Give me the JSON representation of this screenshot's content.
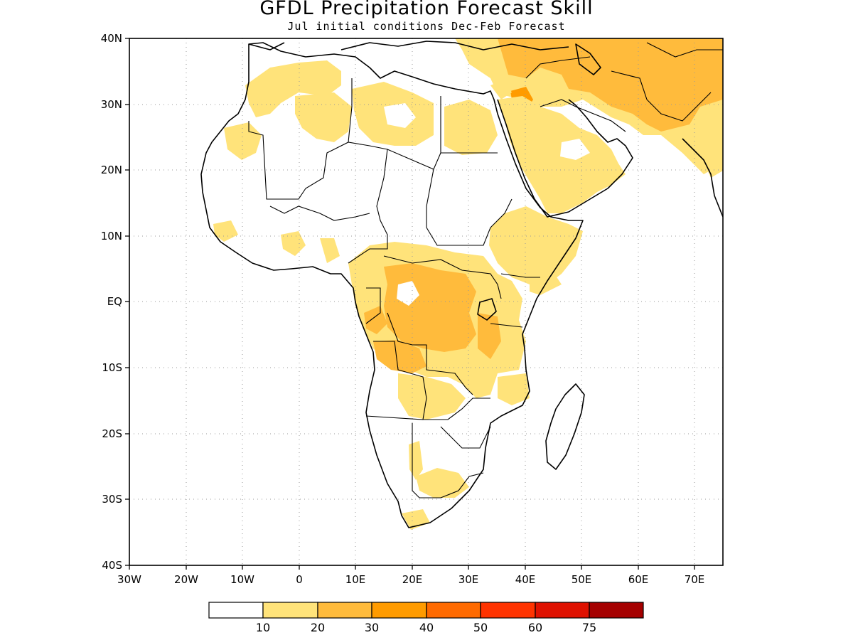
{
  "title": "GFDL Precipitation Forecast Skill",
  "subtitle": "Jul initial conditions  Dec-Feb Forecast",
  "map": {
    "lon_range": [
      -30,
      75
    ],
    "lat_range": [
      -40,
      40
    ],
    "y_ticks": [
      "40N",
      "30N",
      "20N",
      "10N",
      "EQ",
      "10S",
      "20S",
      "30S",
      "40S"
    ],
    "x_ticks": [
      "30W",
      "20W",
      "10W",
      "0",
      "10E",
      "20E",
      "30E",
      "40E",
      "50E",
      "60E",
      "70E"
    ],
    "grid": "dotted"
  },
  "colorbar": {
    "labels": [
      "10",
      "20",
      "30",
      "40",
      "50",
      "60",
      "75"
    ],
    "colors": [
      "#ffffff",
      "#ffe37a",
      "#ffbb3c",
      "#ff9b00",
      "#ff6a00",
      "#ff3300",
      "#df1100",
      "#a50000"
    ]
  }
}
